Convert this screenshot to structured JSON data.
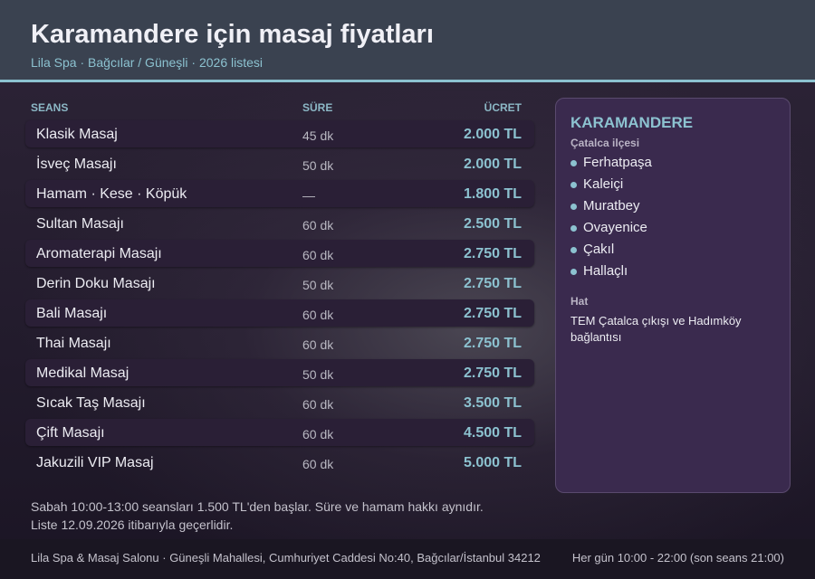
{
  "header": {
    "title": "Karamandere için masaj fiyatları",
    "subtitle": "Lila Spa · Bağcılar / Güneşli · 2026 listesi"
  },
  "table": {
    "columns": [
      "SEANS",
      "SÜRE",
      "ÜCRET"
    ],
    "rows": [
      [
        "Klasik Masaj",
        "45 dk",
        "2.000 TL"
      ],
      [
        "İsveç Masajı",
        "50 dk",
        "2.000 TL"
      ],
      [
        "Hamam · Kese · Köpük",
        "—",
        "1.800 TL"
      ],
      [
        "Sultan Masajı",
        "60 dk",
        "2.500 TL"
      ],
      [
        "Aromaterapi Masajı",
        "60 dk",
        "2.750 TL"
      ],
      [
        "Derin Doku Masajı",
        "50 dk",
        "2.750 TL"
      ],
      [
        "Bali Masajı",
        "60 dk",
        "2.750 TL"
      ],
      [
        "Thai Masajı",
        "60 dk",
        "2.750 TL"
      ],
      [
        "Medikal Masaj",
        "50 dk",
        "2.750 TL"
      ],
      [
        "Sıcak Taş Masajı",
        "60 dk",
        "3.500 TL"
      ],
      [
        "Çift Masajı",
        "60 dk",
        "4.500 TL"
      ],
      [
        "Jakuzili VIP Masaj",
        "60 dk",
        "5.000 TL"
      ]
    ]
  },
  "notes": [
    "Sabah 10:00-13:00 seansları 1.500 TL'den başlar. Süre ve hamam hakkı aynıdır.",
    "Liste 12.09.2026 itibarıyla geçerlidir."
  ],
  "sidebar": {
    "title": "KARAMANDERE",
    "district": "Çatalca ilçesi",
    "neighbourhoods": [
      "Ferhatpaşa",
      "Kaleiçi",
      "Muratbey",
      "Ovayenice",
      "Çakıl",
      "Hallaçlı"
    ],
    "route_label": "Hat",
    "route": "TEM Çatalca çıkışı ve Hadımköy bağlantısı"
  },
  "footer": {
    "address": "Lila Spa & Masaj Salonu · Güneşli Mahallesi, Cumhuriyet Caddesi No:40, Bağcılar/İstanbul 34212",
    "hours": "Her gün 10:00 - 22:00 (son seans 21:00)"
  }
}
